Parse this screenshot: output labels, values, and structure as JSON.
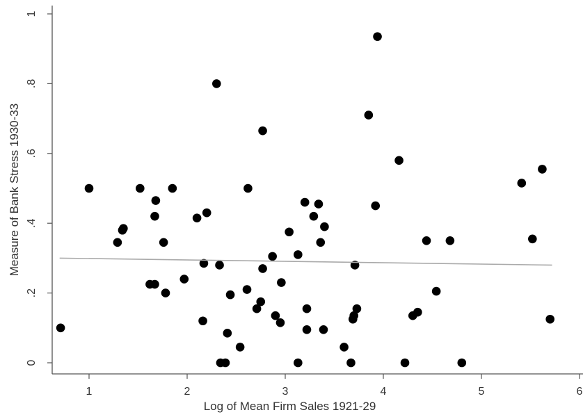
{
  "chart_data": {
    "type": "scatter",
    "xlabel": "Log of Mean Firm Sales 1921-29",
    "ylabel": "Measure of Bank Stress 1930-33",
    "xlim": [
      0.65,
      6.05
    ],
    "ylim": [
      -0.03,
      1.02
    ],
    "xticks": [
      {
        "value": 1,
        "label": "1"
      },
      {
        "value": 2,
        "label": "2"
      },
      {
        "value": 3,
        "label": "3"
      },
      {
        "value": 4,
        "label": "4"
      },
      {
        "value": 5,
        "label": "5"
      },
      {
        "value": 6,
        "label": "6"
      }
    ],
    "yticks": [
      {
        "value": 0,
        "label": "0"
      },
      {
        "value": 0.2,
        "label": ".2"
      },
      {
        "value": 0.4,
        "label": ".4"
      },
      {
        "value": 0.6,
        "label": ".6"
      },
      {
        "value": 0.8,
        "label": ".8"
      },
      {
        "value": 1,
        "label": "1"
      }
    ],
    "grid": false,
    "series": [
      {
        "color": "#000000",
        "points": [
          [
            0.71,
            0.1
          ],
          [
            1.0,
            0.5
          ],
          [
            1.29,
            0.345
          ],
          [
            1.34,
            0.38
          ],
          [
            1.35,
            0.385
          ],
          [
            1.52,
            0.5
          ],
          [
            1.62,
            0.225
          ],
          [
            1.67,
            0.225
          ],
          [
            1.67,
            0.42
          ],
          [
            1.68,
            0.465
          ],
          [
            1.76,
            0.345
          ],
          [
            1.78,
            0.2
          ],
          [
            1.85,
            0.5
          ],
          [
            1.97,
            0.24
          ],
          [
            2.1,
            0.415
          ],
          [
            2.16,
            0.12
          ],
          [
            2.17,
            0.285
          ],
          [
            2.2,
            0.43
          ],
          [
            2.3,
            0.8
          ],
          [
            2.33,
            0.28
          ],
          [
            2.34,
            0.0
          ],
          [
            2.39,
            0.0
          ],
          [
            2.41,
            0.085
          ],
          [
            2.44,
            0.195
          ],
          [
            2.54,
            0.045
          ],
          [
            2.61,
            0.21
          ],
          [
            2.62,
            0.5
          ],
          [
            2.71,
            0.155
          ],
          [
            2.75,
            0.175
          ],
          [
            2.77,
            0.665
          ],
          [
            2.77,
            0.27
          ],
          [
            2.87,
            0.305
          ],
          [
            2.9,
            0.135
          ],
          [
            2.95,
            0.115
          ],
          [
            2.96,
            0.23
          ],
          [
            3.04,
            0.375
          ],
          [
            3.13,
            0.31
          ],
          [
            3.13,
            0.0
          ],
          [
            3.2,
            0.46
          ],
          [
            3.22,
            0.155
          ],
          [
            3.22,
            0.095
          ],
          [
            3.29,
            0.42
          ],
          [
            3.34,
            0.455
          ],
          [
            3.36,
            0.345
          ],
          [
            3.39,
            0.095
          ],
          [
            3.4,
            0.39
          ],
          [
            3.6,
            0.045
          ],
          [
            3.67,
            0.0
          ],
          [
            3.69,
            0.125
          ],
          [
            3.7,
            0.135
          ],
          [
            3.71,
            0.28
          ],
          [
            3.73,
            0.155
          ],
          [
            3.85,
            0.71
          ],
          [
            3.92,
            0.45
          ],
          [
            3.94,
            0.935
          ],
          [
            4.16,
            0.58
          ],
          [
            4.22,
            0.0
          ],
          [
            4.3,
            0.135
          ],
          [
            4.35,
            0.145
          ],
          [
            4.44,
            0.35
          ],
          [
            4.54,
            0.205
          ],
          [
            4.68,
            0.35
          ],
          [
            4.8,
            0.0
          ],
          [
            5.41,
            0.515
          ],
          [
            5.52,
            0.355
          ],
          [
            5.62,
            0.555
          ],
          [
            5.7,
            0.125
          ]
        ]
      },
      {
        "type": "line",
        "color": "#aaaaaa",
        "points": [
          [
            0.7,
            0.3
          ],
          [
            5.72,
            0.28
          ]
        ]
      }
    ]
  }
}
